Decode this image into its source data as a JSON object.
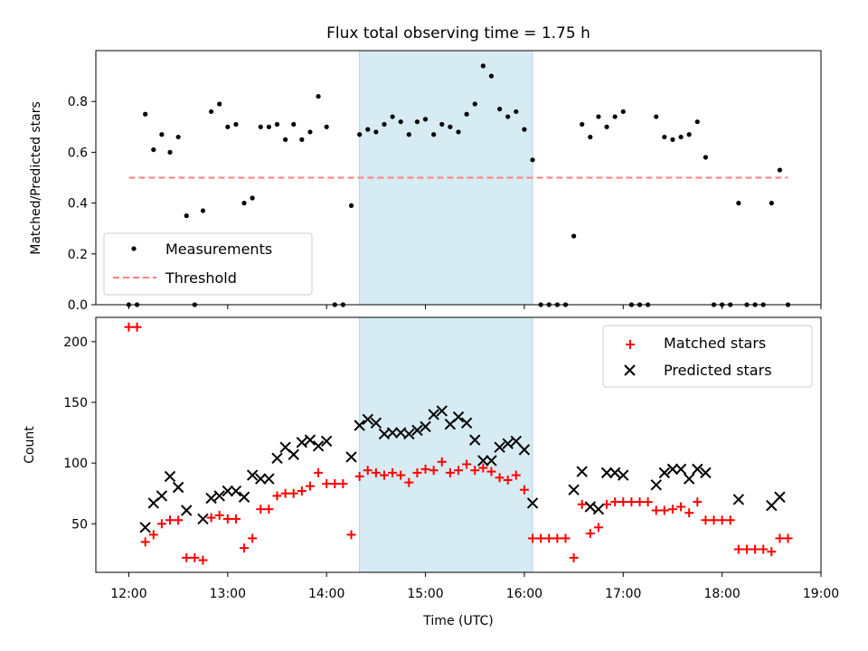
{
  "chart_data": [
    {
      "type": "scatter",
      "title": "Flux total observing time = 1.75 h",
      "ylabel": "Matched/Predicted stars",
      "xlabel": "",
      "xlim": [
        "11:40",
        "19:00"
      ],
      "ylim": [
        0,
        1.0
      ],
      "x_ticks": [
        "12:00",
        "13:00",
        "14:00",
        "15:00",
        "16:00",
        "17:00",
        "18:00",
        "19:00"
      ],
      "y_ticks": [
        "0.0",
        "0.2",
        "0.4",
        "0.6",
        "0.8"
      ],
      "shaded_span": {
        "from": "14:20",
        "to": "16:05",
        "color": "#add8e6"
      },
      "legend": {
        "placement": "lower-left",
        "measurements_label": "Measurements",
        "threshold_label": "Threshold"
      },
      "threshold": {
        "from": "12:00",
        "to": "18:40",
        "value": 0.5,
        "color": "#ff7f7f"
      },
      "measurements": {
        "color": "#000000",
        "x": [
          "12:00",
          "12:05",
          "12:10",
          "12:15",
          "12:20",
          "12:25",
          "12:30",
          "12:35",
          "12:40",
          "12:45",
          "12:50",
          "12:55",
          "13:00",
          "13:05",
          "13:10",
          "13:15",
          "13:20",
          "13:25",
          "13:30",
          "13:35",
          "13:40",
          "13:45",
          "13:50",
          "13:55",
          "14:00",
          "14:05",
          "14:10",
          "14:15",
          "14:20",
          "14:25",
          "14:30",
          "14:35",
          "14:40",
          "14:45",
          "14:50",
          "14:55",
          "15:00",
          "15:05",
          "15:10",
          "15:15",
          "15:20",
          "15:25",
          "15:30",
          "15:35",
          "15:40",
          "15:45",
          "15:50",
          "15:55",
          "16:00",
          "16:05",
          "16:10",
          "16:15",
          "16:20",
          "16:25",
          "16:30",
          "16:35",
          "16:40",
          "16:45",
          "16:50",
          "16:55",
          "17:00",
          "17:05",
          "17:10",
          "17:15",
          "17:20",
          "17:25",
          "17:30",
          "17:35",
          "17:40",
          "17:45",
          "17:50",
          "17:55",
          "18:00",
          "18:05",
          "18:10",
          "18:15",
          "18:20",
          "18:25",
          "18:30",
          "18:35",
          "18:40"
        ],
        "y": [
          0.0,
          0.0,
          0.75,
          0.61,
          0.67,
          0.6,
          0.66,
          0.35,
          0.0,
          0.37,
          0.76,
          0.79,
          0.7,
          0.71,
          0.4,
          0.42,
          0.7,
          0.7,
          0.71,
          0.65,
          0.71,
          0.65,
          0.68,
          0.82,
          0.7,
          0.0,
          0.0,
          0.39,
          0.67,
          0.69,
          0.68,
          0.71,
          0.74,
          0.72,
          0.67,
          0.72,
          0.73,
          0.67,
          0.71,
          0.7,
          0.68,
          0.75,
          0.79,
          0.94,
          0.9,
          0.77,
          0.74,
          0.76,
          0.69,
          0.57,
          0.0,
          0.0,
          0.0,
          0.0,
          0.27,
          0.71,
          0.66,
          0.74,
          0.7,
          0.74,
          0.76,
          0.0,
          0.0,
          0.0,
          0.74,
          0.66,
          0.65,
          0.66,
          0.67,
          0.72,
          0.58,
          0.0,
          0.0,
          0.0,
          0.4,
          0.0,
          0.0,
          0.0,
          0.4,
          0.53,
          0.0
        ]
      }
    },
    {
      "type": "scatter",
      "ylabel": "Count",
      "xlabel": "Time (UTC)",
      "xlim": [
        "11:40",
        "19:00"
      ],
      "ylim": [
        10,
        220
      ],
      "x_ticks": [
        "12:00",
        "13:00",
        "14:00",
        "15:00",
        "16:00",
        "17:00",
        "18:00",
        "19:00"
      ],
      "y_ticks": [
        "50",
        "100",
        "150",
        "200"
      ],
      "shaded_span": {
        "from": "14:20",
        "to": "16:05",
        "color": "#add8e6"
      },
      "legend": {
        "placement": "upper-right"
      },
      "series": [
        {
          "name": "Matched stars",
          "marker": "+",
          "color": "#ff0000",
          "x": [
            "12:00",
            "12:05",
            "12:10",
            "12:15",
            "12:20",
            "12:25",
            "12:30",
            "12:35",
            "12:40",
            "12:45",
            "12:50",
            "12:55",
            "13:00",
            "13:05",
            "13:10",
            "13:15",
            "13:20",
            "13:25",
            "13:30",
            "13:35",
            "13:40",
            "13:45",
            "13:50",
            "13:55",
            "14:00",
            "14:05",
            "14:10",
            "14:15",
            "14:20",
            "14:25",
            "14:30",
            "14:35",
            "14:40",
            "14:45",
            "14:50",
            "14:55",
            "15:00",
            "15:05",
            "15:10",
            "15:15",
            "15:20",
            "15:25",
            "15:30",
            "15:35",
            "15:40",
            "15:45",
            "15:50",
            "15:55",
            "16:00",
            "16:05",
            "16:10",
            "16:15",
            "16:20",
            "16:25",
            "16:30",
            "16:35",
            "16:40",
            "16:45",
            "16:50",
            "16:55",
            "17:00",
            "17:05",
            "17:10",
            "17:15",
            "17:20",
            "17:25",
            "17:30",
            "17:35",
            "17:40",
            "17:45",
            "17:50",
            "17:55",
            "18:00",
            "18:05",
            "18:10",
            "18:15",
            "18:20",
            "18:25",
            "18:30",
            "18:35",
            "18:40"
          ],
          "y": [
            212,
            212,
            35,
            41,
            50,
            53,
            53,
            22,
            22,
            20,
            55,
            57,
            54,
            54,
            30,
            38,
            62,
            62,
            73,
            75,
            75,
            77,
            81,
            92,
            83,
            83,
            83,
            41,
            89,
            94,
            92,
            90,
            92,
            90,
            84,
            92,
            95,
            94,
            101,
            92,
            94,
            99,
            94,
            96,
            93,
            88,
            86,
            90,
            78,
            38,
            38,
            38,
            38,
            38,
            22,
            66,
            42,
            47,
            66,
            68,
            68,
            68,
            68,
            68,
            61,
            61,
            62,
            64,
            59,
            68,
            53,
            53,
            53,
            53,
            29,
            29,
            29,
            29,
            27,
            38,
            38
          ]
        },
        {
          "name": "Predicted stars",
          "marker": "x",
          "color": "#000000",
          "x": [
            "12:10",
            "12:15",
            "12:20",
            "12:25",
            "12:30",
            "12:35",
            "12:45",
            "12:50",
            "12:55",
            "13:00",
            "13:05",
            "13:10",
            "13:15",
            "13:20",
            "13:25",
            "13:30",
            "13:35",
            "13:40",
            "13:45",
            "13:50",
            "13:55",
            "14:00",
            "14:15",
            "14:20",
            "14:25",
            "14:30",
            "14:35",
            "14:40",
            "14:45",
            "14:50",
            "14:55",
            "15:00",
            "15:05",
            "15:10",
            "15:15",
            "15:20",
            "15:25",
            "15:30",
            "15:35",
            "15:40",
            "15:45",
            "15:50",
            "15:55",
            "16:00",
            "16:05",
            "16:30",
            "16:35",
            "16:40",
            "16:45",
            "16:50",
            "16:55",
            "17:00",
            "17:20",
            "17:25",
            "17:30",
            "17:35",
            "17:40",
            "17:45",
            "17:50",
            "18:10",
            "18:30",
            "18:35"
          ],
          "y": [
            47,
            67,
            73,
            89,
            80,
            61,
            54,
            71,
            73,
            77,
            77,
            72,
            90,
            87,
            87,
            104,
            113,
            107,
            117,
            119,
            114,
            118,
            105,
            131,
            136,
            133,
            124,
            125,
            125,
            124,
            127,
            130,
            140,
            143,
            132,
            138,
            133,
            119,
            102,
            102,
            113,
            116,
            118,
            111,
            67,
            78,
            93,
            64,
            62,
            92,
            92,
            90,
            82,
            92,
            95,
            95,
            87,
            95,
            92,
            70,
            65,
            72
          ]
        }
      ]
    }
  ]
}
